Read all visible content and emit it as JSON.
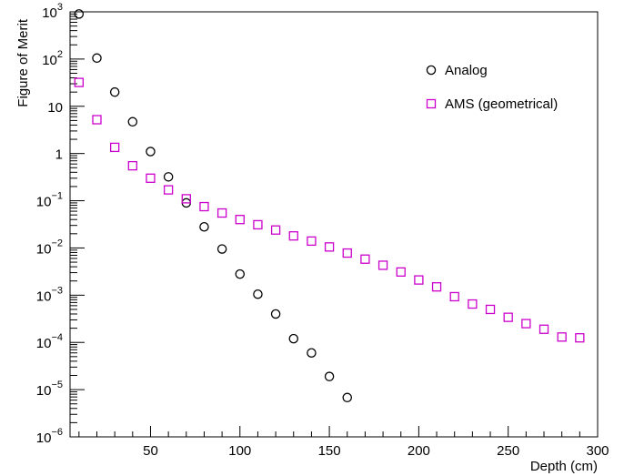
{
  "chart_data": {
    "type": "scatter",
    "title": "",
    "xlabel": "Depth (cm)",
    "ylabel": "Figure of Merit",
    "xlim": [
      5,
      300
    ],
    "ylim": [
      1e-06,
      1000
    ],
    "y_scale": "log",
    "grid": false,
    "legend_position": "top-right",
    "x_ticks": [
      {
        "value": 50,
        "label": "50"
      },
      {
        "value": 100,
        "label": "100"
      },
      {
        "value": 150,
        "label": "150"
      },
      {
        "value": 200,
        "label": "200"
      },
      {
        "value": 250,
        "label": "250"
      },
      {
        "value": 300,
        "label": "300"
      }
    ],
    "y_ticks": [
      {
        "exp": -6,
        "label": "10",
        "sup": "−6"
      },
      {
        "exp": -5,
        "label": "10",
        "sup": "−5"
      },
      {
        "exp": -4,
        "label": "10",
        "sup": "−4"
      },
      {
        "exp": -3,
        "label": "10",
        "sup": "−3"
      },
      {
        "exp": -2,
        "label": "10",
        "sup": "−2"
      },
      {
        "exp": -1,
        "label": "10",
        "sup": "−1"
      },
      {
        "exp": 0,
        "label": "1",
        "sup": ""
      },
      {
        "exp": 1,
        "label": "10",
        "sup": ""
      },
      {
        "exp": 2,
        "label": "10",
        "sup": "2"
      },
      {
        "exp": 3,
        "label": "10",
        "sup": "3"
      }
    ],
    "series": [
      {
        "name": "Analog",
        "marker": "circle",
        "color": "#000000",
        "x": [
          10,
          20,
          30,
          40,
          50,
          60,
          70,
          80,
          90,
          100,
          110,
          120,
          130,
          140,
          150,
          160
        ],
        "y": [
          900,
          105,
          20,
          4.7,
          1.1,
          0.32,
          0.09,
          0.028,
          0.0095,
          0.0028,
          0.00105,
          0.0004,
          0.00012,
          6e-05,
          1.9e-05,
          6.8e-06
        ]
      },
      {
        "name": "AMS (geometrical)",
        "marker": "square",
        "color": "#cc00cc",
        "x": [
          10,
          20,
          30,
          40,
          50,
          60,
          70,
          80,
          90,
          100,
          110,
          120,
          130,
          140,
          150,
          160,
          170,
          180,
          190,
          200,
          210,
          220,
          230,
          240,
          250,
          260,
          270,
          280,
          290
        ],
        "y": [
          32,
          5.2,
          1.35,
          0.55,
          0.3,
          0.17,
          0.11,
          0.075,
          0.055,
          0.04,
          0.031,
          0.024,
          0.018,
          0.014,
          0.0105,
          0.0078,
          0.0058,
          0.0043,
          0.0031,
          0.0021,
          0.0015,
          0.00093,
          0.00065,
          0.0005,
          0.00034,
          0.00025,
          0.00019,
          0.00013,
          0.000125
        ]
      }
    ]
  }
}
